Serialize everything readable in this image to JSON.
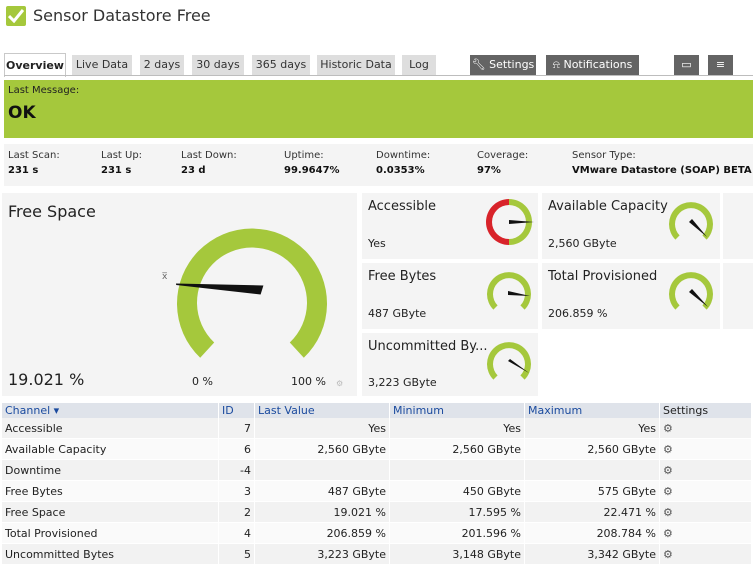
{
  "header": {
    "title": "Sensor Datastore Free"
  },
  "tabs": [
    {
      "label": "Overview"
    },
    {
      "label": "Live Data"
    },
    {
      "label": "2 days"
    },
    {
      "label": "30 days"
    },
    {
      "label": "365 days"
    },
    {
      "label": "Historic Data"
    },
    {
      "label": "Log"
    }
  ],
  "actions": {
    "settings": "Settings",
    "notifications": "Notifications"
  },
  "message": {
    "label": "Last Message:",
    "text": "OK"
  },
  "stats": [
    {
      "label": "Last Scan:",
      "value": "231 s"
    },
    {
      "label": "Last Up:",
      "value": "231 s"
    },
    {
      "label": "Last Down:",
      "value": "23 d"
    },
    {
      "label": "Uptime:",
      "value": "99.9647%"
    },
    {
      "label": "Downtime:",
      "value": "0.0353%"
    },
    {
      "label": "Coverage:",
      "value": "97%"
    },
    {
      "label": "Sensor Type:",
      "value": "VMware Datastore (SOAP) BETA"
    }
  ],
  "gauges": {
    "free_space": {
      "title": "Free Space",
      "value": "19.021 %",
      "fraction": 0.19021,
      "min_label": "0 %",
      "max_label": "100 %",
      "mean_mark": "x̅"
    },
    "accessible": {
      "title": "Accessible",
      "value": "Yes"
    },
    "available_capacity": {
      "title": "Available Capacity",
      "value": "2,560 GByte"
    },
    "free_bytes": {
      "title": "Free Bytes",
      "value": "487 GByte"
    },
    "total_provisioned": {
      "title": "Total Provisioned",
      "value": "206.859 %"
    },
    "uncommitted": {
      "title": "Uncommitted By...",
      "value": "3,223 GByte"
    }
  },
  "colors": {
    "ok_green": "#a5c83c",
    "error_red": "#d8232a",
    "needle": "#111111"
  },
  "table": {
    "headers": {
      "channel": "Channel",
      "id": "ID",
      "last": "Last Value",
      "min": "Minimum",
      "max": "Maximum",
      "settings": "Settings"
    },
    "rows": [
      {
        "channel": "Accessible",
        "id": "7",
        "last": "Yes",
        "min": "Yes",
        "max": "Yes"
      },
      {
        "channel": "Available Capacity",
        "id": "6",
        "last": "2,560 GByte",
        "min": "2,560 GByte",
        "max": "2,560 GByte"
      },
      {
        "channel": "Downtime",
        "id": "-4",
        "last": "",
        "min": "",
        "max": ""
      },
      {
        "channel": "Free Bytes",
        "id": "3",
        "last": "487 GByte",
        "min": "450 GByte",
        "max": "575 GByte"
      },
      {
        "channel": "Free Space",
        "id": "2",
        "last": "19.021 %",
        "min": "17.595 %",
        "max": "22.471 %"
      },
      {
        "channel": "Total Provisioned",
        "id": "4",
        "last": "206.859 %",
        "min": "201.596 %",
        "max": "208.784 %"
      },
      {
        "channel": "Uncommitted Bytes",
        "id": "5",
        "last": "3,223 GByte",
        "min": "3,148 GByte",
        "max": "3,342 GByte"
      }
    ]
  }
}
